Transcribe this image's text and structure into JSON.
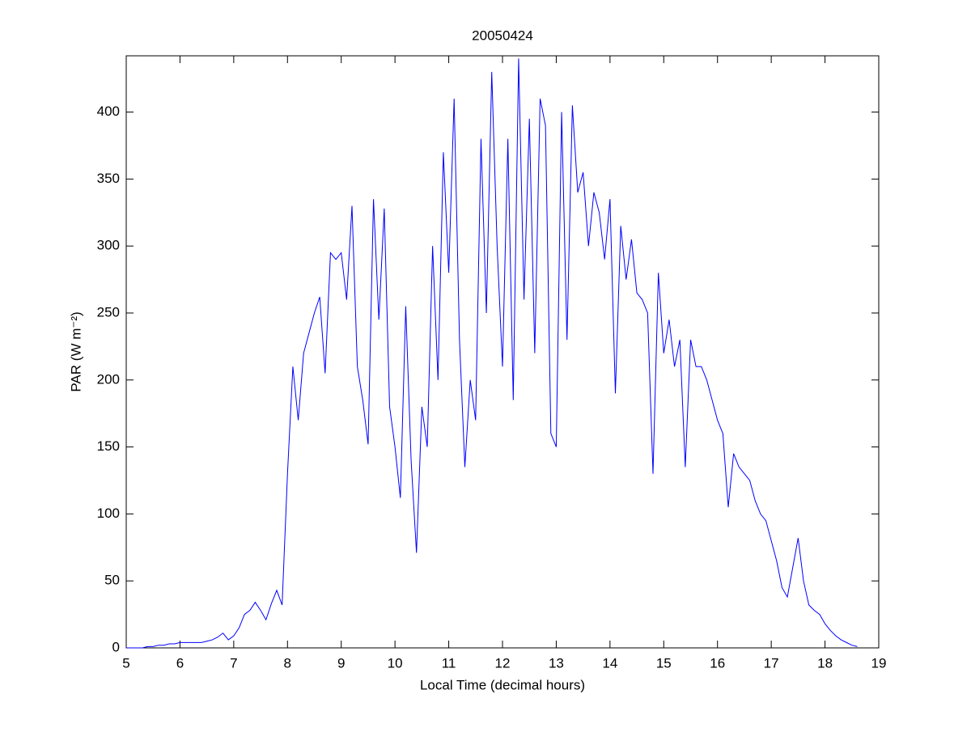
{
  "chart_data": {
    "type": "line",
    "title": "20050424",
    "xlabel": "Local Time (decimal hours)",
    "ylabel": "PAR (W m⁻²)",
    "color": "#0000ff",
    "x": [
      5.0,
      5.1,
      5.2,
      5.3,
      5.4,
      5.5,
      5.6,
      5.7,
      5.8,
      5.9,
      6.0,
      6.1,
      6.2,
      6.3,
      6.4,
      6.5,
      6.6,
      6.7,
      6.8,
      6.9,
      7.0,
      7.1,
      7.2,
      7.3,
      7.4,
      7.5,
      7.6,
      7.7,
      7.8,
      7.9,
      8.0,
      8.1,
      8.2,
      8.3,
      8.4,
      8.5,
      8.6,
      8.7,
      8.8,
      8.9,
      9.0,
      9.1,
      9.2,
      9.3,
      9.4,
      9.5,
      9.6,
      9.7,
      9.8,
      9.9,
      10.0,
      10.1,
      10.2,
      10.3,
      10.4,
      10.5,
      10.6,
      10.7,
      10.8,
      10.9,
      11.0,
      11.1,
      11.2,
      11.3,
      11.4,
      11.5,
      11.6,
      11.7,
      11.8,
      11.9,
      12.0,
      12.1,
      12.2,
      12.3,
      12.4,
      12.5,
      12.6,
      12.7,
      12.8,
      12.9,
      13.0,
      13.1,
      13.2,
      13.3,
      13.4,
      13.5,
      13.6,
      13.7,
      13.8,
      13.9,
      14.0,
      14.1,
      14.2,
      14.3,
      14.4,
      14.5,
      14.6,
      14.7,
      14.8,
      14.9,
      15.0,
      15.1,
      15.2,
      15.3,
      15.4,
      15.5,
      15.6,
      15.7,
      15.8,
      15.9,
      16.0,
      16.1,
      16.2,
      16.3,
      16.4,
      16.5,
      16.6,
      16.7,
      16.8,
      16.9,
      17.0,
      17.1,
      17.2,
      17.3,
      17.4,
      17.5,
      17.6,
      17.7,
      17.8,
      17.9,
      18.0,
      18.1,
      18.2,
      18.3,
      18.4,
      18.5,
      18.6
    ],
    "values": [
      0,
      0,
      0,
      0,
      1,
      1,
      2,
      2,
      3,
      3,
      4,
      4,
      4,
      4,
      4,
      5,
      6,
      8,
      11,
      6,
      9,
      15,
      25,
      28,
      34,
      28,
      21,
      33,
      43,
      32,
      130,
      210,
      170,
      220,
      235,
      250,
      262,
      205,
      295,
      290,
      295,
      260,
      330,
      210,
      185,
      152,
      335,
      245,
      328,
      180,
      150,
      112,
      255,
      140,
      71,
      180,
      150,
      300,
      200,
      370,
      280,
      410,
      230,
      135,
      200,
      170,
      380,
      250,
      430,
      300,
      210,
      380,
      185,
      440,
      260,
      395,
      220,
      410,
      390,
      160,
      150,
      400,
      230,
      405,
      340,
      355,
      300,
      340,
      325,
      290,
      335,
      190,
      315,
      275,
      305,
      265,
      260,
      250,
      130,
      280,
      220,
      245,
      210,
      230,
      135,
      230,
      210,
      210,
      200,
      185,
      170,
      160,
      105,
      145,
      135,
      130,
      125,
      110,
      100,
      95,
      80,
      65,
      45,
      38,
      60,
      82,
      50,
      32,
      28,
      25,
      18,
      13,
      9,
      6,
      4,
      2,
      1
    ],
    "xlim": [
      5,
      19
    ],
    "ylim": [
      0,
      442
    ],
    "xticks": [
      5,
      6,
      7,
      8,
      9,
      10,
      11,
      12,
      13,
      14,
      15,
      16,
      17,
      18,
      19
    ],
    "yticks": [
      0,
      50,
      100,
      150,
      200,
      250,
      300,
      350,
      400
    ]
  }
}
